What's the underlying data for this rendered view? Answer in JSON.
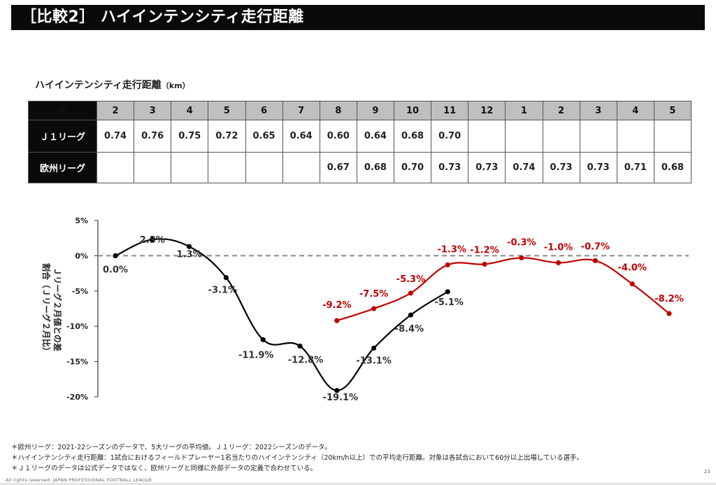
{
  "header": {
    "title": "［比較2］ ハイインテンシティ走行距離"
  },
  "table": {
    "title": "ハイインテンシティ走行距離",
    "unit": "（km）",
    "corner_label": "月",
    "months": [
      "2",
      "3",
      "4",
      "5",
      "6",
      "7",
      "8",
      "9",
      "10",
      "11",
      "12",
      "1",
      "2",
      "3",
      "4",
      "5"
    ],
    "rows": [
      {
        "label": "Ｊ１リーグ",
        "values": [
          "0.74",
          "0.76",
          "0.75",
          "0.72",
          "0.65",
          "0.64",
          "0.60",
          "0.64",
          "0.68",
          "0.70",
          "",
          "",
          "",
          "",
          "",
          ""
        ]
      },
      {
        "label": "欧州リーグ",
        "values": [
          "",
          "",
          "",
          "",
          "",
          "",
          "0.67",
          "0.68",
          "0.70",
          "0.73",
          "0.73",
          "0.74",
          "0.73",
          "0.73",
          "0.71",
          "0.68"
        ]
      }
    ]
  },
  "chart_data": {
    "type": "line",
    "ylabel_line1": "割合（Ｊリーグ２月比）",
    "ylabel_line2": "Ｊリーグ２月値との差",
    "ylim": [
      -20,
      5
    ],
    "yticks": [
      5,
      0,
      -5,
      -10,
      -15,
      -20
    ],
    "ytick_labels": [
      "5%",
      "0%",
      "-5%",
      "-10%",
      "-15%",
      "-20%"
    ],
    "reference_line": 0,
    "series": [
      {
        "name": "Ｊ１リーグ",
        "color": "#000000",
        "start_index": 0,
        "values": [
          0.0,
          2.3,
          1.3,
          -3.1,
          -11.9,
          -12.8,
          -19.1,
          -13.1,
          -8.4,
          -5.1
        ],
        "labels": [
          "0.0%",
          "2.3%",
          "1.3%",
          "-3.1%",
          "-11.9%",
          "-12.8%",
          "-19.1%",
          "-13.1%",
          "-8.4%",
          "-5.1%"
        ]
      },
      {
        "name": "欧州リーグ",
        "color": "#c00000",
        "start_index": 6,
        "values": [
          -9.2,
          -7.5,
          -5.3,
          -1.3,
          -1.2,
          -0.3,
          -1.0,
          -0.7,
          -4.0,
          -8.2
        ],
        "labels": [
          "-9.2%",
          "-7.5%",
          "-5.3%",
          "-1.3%",
          "-1.2%",
          "-0.3%",
          "-1.0%",
          "-0.7%",
          "-4.0%",
          "-8.2%"
        ]
      }
    ]
  },
  "notes": [
    "＊欧州リーグ：2021-22シーズンのデータで、5大リーグの平均値。Ｊ１リーグ：2022シーズンのデータ。",
    "＊ハイインテンシティ走行距離：1試合におけるフィールドプレーヤー1名当たりのハイインテンシティ（20km/h以上）での平均走行距離。対象は各試合において60分以上出場している選手。",
    "＊Ｊ１リーグのデータは公式データではなく、欧州リーグと同様に外部データの定義で合わせている。"
  ],
  "footer": {
    "copyright": "All rights reserved. JAPAN PROFESSIONAL FOOTBALL LEAGUE",
    "page": "23"
  }
}
